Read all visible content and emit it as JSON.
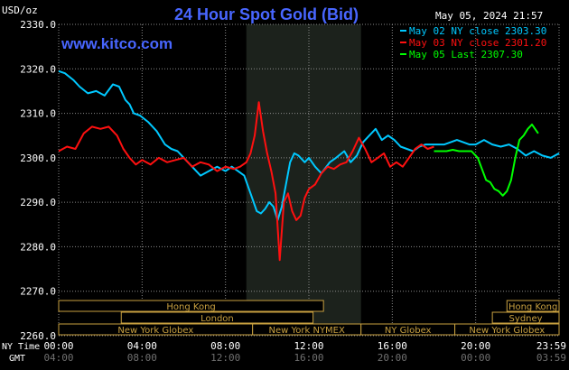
{
  "header": {
    "title": "24 Hour Spot Gold (Bid)",
    "date": "May 05, 2024 21:57",
    "watermark": "www.kitco.com",
    "y_unit": "USD/oz"
  },
  "legend": [
    {
      "label": "May 02 NY close 2303.30",
      "color": "#00c8ff"
    },
    {
      "label": "May 03 NY close 2301.20",
      "color": "#ff1010"
    },
    {
      "label": "May 05 Last 2307.30",
      "color": "#00ff00"
    }
  ],
  "time_axis": {
    "row1_label": "NY Time",
    "row2_label": "GMT",
    "ny_ticks": [
      "00:00",
      "04:00",
      "08:00",
      "12:00",
      "16:00",
      "20:00",
      "23:59"
    ],
    "gmt_ticks": [
      "04:00",
      "08:00",
      "12:00",
      "16:00",
      "20:00",
      "00:00",
      "03:59"
    ]
  },
  "sessions": [
    {
      "label": "Hong Kong",
      "start": 0.0,
      "end": 12.7,
      "row": 0
    },
    {
      "label": "London",
      "start": 3.0,
      "end": 12.2,
      "row": 1
    },
    {
      "label": "New York Globex",
      "start": 0.0,
      "end": 9.3,
      "row": 2
    },
    {
      "label": "New York NYMEX",
      "start": 9.3,
      "end": 14.5,
      "row": 2
    },
    {
      "label": "NY Globex",
      "start": 14.5,
      "end": 19.0,
      "row": 2
    },
    {
      "label": "Hong Kong",
      "start": 21.5,
      "end": 24.0,
      "row": 0
    },
    {
      "label": "Sydney",
      "start": 20.8,
      "end": 24.0,
      "row": 1
    },
    {
      "label": "New York Globex",
      "start": 19.0,
      "end": 24.0,
      "row": 2
    }
  ],
  "colors": {
    "background": "#000000",
    "grid": "#8a8a8a",
    "highlight": "#1c221c",
    "title": "#4866ff",
    "watermark": "#4866ff",
    "session_border": "#c8a040",
    "session_text": "#c8a040",
    "axis_text": "#ffffff",
    "gmt_text": "#707070"
  },
  "chart_data": {
    "type": "line",
    "title": "24 Hour Spot Gold (Bid)",
    "xlabel": "NY Time",
    "ylabel": "USD/oz",
    "xlim": [
      0,
      24
    ],
    "ylim": [
      2260,
      2330
    ],
    "yticks": [
      "2330.0",
      "2320.0",
      "2310.0",
      "2300.0",
      "2290.0",
      "2280.0",
      "2270.0",
      "2260.0"
    ],
    "ytick_values": [
      2330,
      2320,
      2310,
      2300,
      2290,
      2280,
      2270,
      2260
    ],
    "highlight_range": [
      9.0,
      14.5
    ],
    "grid": true,
    "legend_position": "top-right",
    "series": [
      {
        "name": "May 02",
        "color": "#00c8ff",
        "x": [
          0,
          0.3,
          0.7,
          1.0,
          1.4,
          1.8,
          2.2,
          2.6,
          2.9,
          3.2,
          3.4,
          3.6,
          3.9,
          4.3,
          4.7,
          5.1,
          5.4,
          5.7,
          6.0,
          6.4,
          6.8,
          7.2,
          7.6,
          8.0,
          8.3,
          8.6,
          8.9,
          9.2,
          9.5,
          9.7,
          9.9,
          10.1,
          10.3,
          10.5,
          10.7,
          10.9,
          11.1,
          11.3,
          11.5,
          11.8,
          12.0,
          12.3,
          12.6,
          13.0,
          13.3,
          13.7,
          14.0,
          14.3,
          14.6,
          14.9,
          15.2,
          15.5,
          15.8,
          16.1,
          16.4,
          16.7,
          17.0,
          17.3,
          17.6,
          17.9,
          18.2,
          18.5,
          18.8,
          19.1,
          19.4,
          19.7,
          20.0,
          20.4,
          20.8,
          21.2,
          21.6,
          22.0,
          22.4,
          22.8,
          23.2,
          23.6,
          24.0
        ],
        "y": [
          2319.5,
          2319,
          2317.5,
          2316,
          2314.5,
          2315,
          2314,
          2316.5,
          2316,
          2313,
          2312,
          2310,
          2309.5,
          2308,
          2306,
          2303,
          2302,
          2301.5,
          2300,
          2298,
          2296,
          2297,
          2298,
          2297,
          2298,
          2297,
          2296,
          2292,
          2288,
          2287.5,
          2288.5,
          2290,
          2289,
          2286,
          2289,
          2294,
          2299,
          2301,
          2300.5,
          2299,
          2300,
          2298,
          2296.5,
          2299,
          2300,
          2301.5,
          2299,
          2300.5,
          2303.5,
          2305,
          2306.5,
          2304,
          2305,
          2304,
          2302.5,
          2302,
          2301.5,
          2302.5,
          2303,
          2303,
          2303,
          2303,
          2303.5,
          2304,
          2303.5,
          2303,
          2303,
          2304,
          2303,
          2302.5,
          2303,
          2302,
          2300.5,
          2301.5,
          2300.5,
          2300,
          2301
        ]
      },
      {
        "name": "May 03",
        "color": "#ff1010",
        "x": [
          0,
          0.4,
          0.8,
          1.2,
          1.6,
          2.0,
          2.4,
          2.8,
          3.1,
          3.4,
          3.7,
          4.0,
          4.4,
          4.8,
          5.2,
          5.6,
          6.0,
          6.4,
          6.8,
          7.2,
          7.6,
          8.0,
          8.4,
          8.7,
          9.0,
          9.2,
          9.4,
          9.6,
          9.8,
          10.0,
          10.2,
          10.4,
          10.6,
          10.8,
          11.0,
          11.2,
          11.4,
          11.6,
          11.8,
          12.0,
          12.3,
          12.6,
          12.9,
          13.2,
          13.5,
          13.8,
          14.1,
          14.4,
          14.7,
          15.0,
          15.3,
          15.6,
          15.9,
          16.2,
          16.5,
          16.8,
          17.1,
          17.4,
          17.7,
          18.0
        ],
        "y": [
          2301.5,
          2302.5,
          2302,
          2305.5,
          2307,
          2306.5,
          2307,
          2305,
          2302,
          2300,
          2298.5,
          2299.5,
          2298.5,
          2300,
          2299,
          2299.5,
          2300,
          2298,
          2299,
          2298.5,
          2297,
          2298,
          2297.5,
          2298,
          2299,
          2301,
          2305,
          2312.5,
          2306,
          2301,
          2297,
          2292,
          2277,
          2290,
          2292,
          2288,
          2286,
          2287,
          2291,
          2293,
          2294,
          2296.5,
          2298,
          2297.5,
          2298.5,
          2299,
          2301.5,
          2304.5,
          2302,
          2299,
          2300,
          2301,
          2298,
          2299,
          2298,
          2300,
          2302,
          2303,
          2302,
          2302.5
        ]
      },
      {
        "name": "May 05",
        "color": "#00ff00",
        "x": [
          18.0,
          18.3,
          18.6,
          18.9,
          19.2,
          19.5,
          19.8,
          20.1,
          20.3,
          20.5,
          20.7,
          20.9,
          21.1,
          21.3,
          21.5,
          21.7,
          21.9,
          22.1,
          22.3,
          22.5,
          22.7,
          23.0
        ],
        "y": [
          2301.5,
          2301.5,
          2301.5,
          2301.8,
          2301.5,
          2301.5,
          2301.5,
          2300,
          2297.5,
          2295,
          2294.5,
          2293,
          2292.5,
          2291.5,
          2292.5,
          2295,
          2300,
          2304,
          2305,
          2306.5,
          2307.5,
          2305.5
        ]
      }
    ]
  }
}
